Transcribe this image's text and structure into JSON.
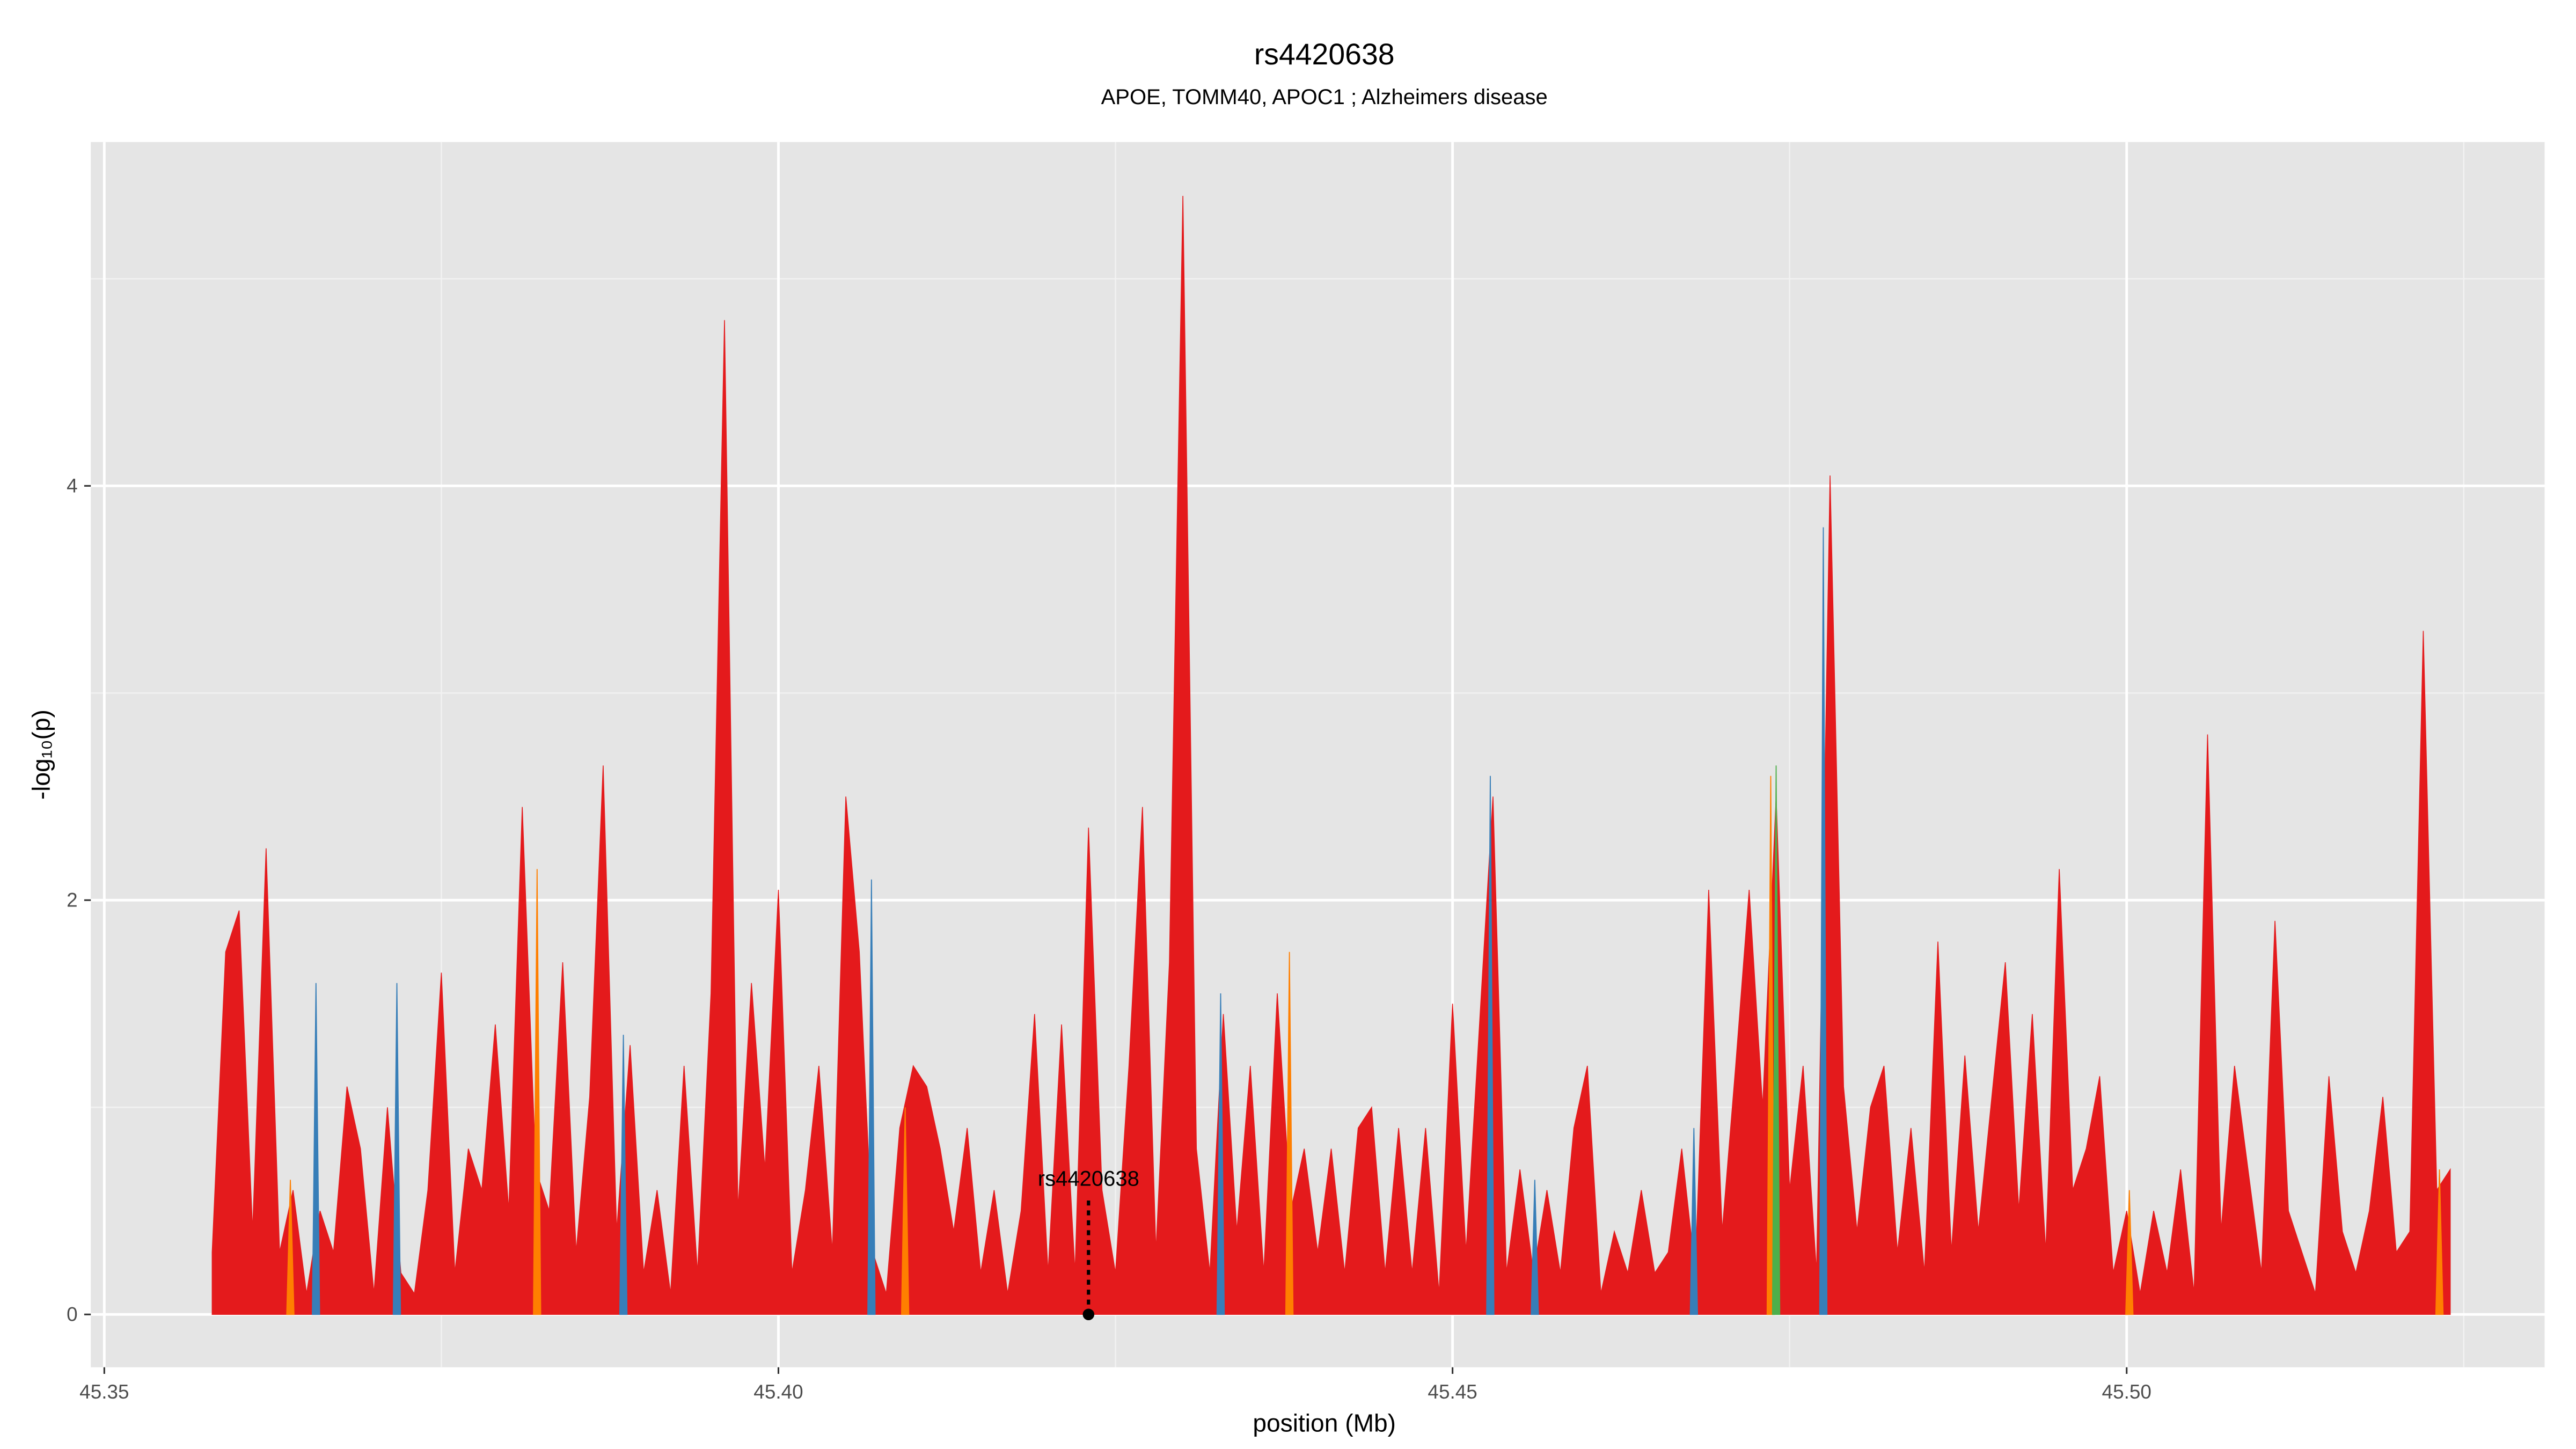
{
  "chart_data": {
    "type": "area",
    "title": "rs4420638",
    "subtitle": "APOE, TOMM40, APOC1 ; Alzheimers disease",
    "x_label": "position (Mb)",
    "y_label": "-log₁₀(p)",
    "xlim": [
      45.349,
      45.531
    ],
    "ylim": [
      -0.255,
      5.66
    ],
    "xticks": [
      45.35,
      {
        "value": 45.4,
        "label": "45.40"
      },
      45.45,
      {
        "value": 45.5,
        "label": "45.50"
      }
    ],
    "yticks": [
      0,
      2,
      4
    ],
    "grid": true,
    "series": [
      {
        "color": "#e41a1c",
        "x": [
          45.358,
          45.359,
          45.36,
          45.361,
          45.362,
          45.363,
          45.364,
          45.365,
          45.366,
          45.367,
          45.368,
          45.369,
          45.37,
          45.371,
          45.372,
          45.373,
          45.374,
          45.375,
          45.376,
          45.377,
          45.378,
          45.379,
          45.38,
          45.381,
          45.382,
          45.383,
          45.384,
          45.385,
          45.386,
          45.387,
          45.388,
          45.389,
          45.39,
          45.391,
          45.392,
          45.393,
          45.394,
          45.395,
          45.396,
          45.397,
          45.398,
          45.399,
          45.4,
          45.401,
          45.402,
          45.403,
          45.404,
          45.405,
          45.406,
          45.407,
          45.408,
          45.409,
          45.41,
          45.411,
          45.412,
          45.413,
          45.414,
          45.415,
          45.416,
          45.417,
          45.418,
          45.419,
          45.42,
          45.421,
          45.422,
          45.423,
          45.424,
          45.425,
          45.426,
          45.427,
          45.428,
          45.429,
          45.43,
          45.431,
          45.432,
          45.433,
          45.434,
          45.435,
          45.436,
          45.437,
          45.438,
          45.439,
          45.44,
          45.441,
          45.442,
          45.443,
          45.444,
          45.445,
          45.446,
          45.447,
          45.448,
          45.449,
          45.45,
          45.451,
          45.452,
          45.453,
          45.454,
          45.455,
          45.456,
          45.457,
          45.458,
          45.459,
          45.46,
          45.461,
          45.462,
          45.463,
          45.464,
          45.465,
          45.466,
          45.467,
          45.468,
          45.469,
          45.47,
          45.471,
          45.472,
          45.473,
          45.474,
          45.475,
          45.476,
          45.477,
          45.478,
          45.479,
          45.48,
          45.481,
          45.482,
          45.483,
          45.484,
          45.485,
          45.486,
          45.487,
          45.488,
          45.489,
          45.49,
          45.491,
          45.492,
          45.493,
          45.494,
          45.495,
          45.496,
          45.497,
          45.498,
          45.499,
          45.5,
          45.501,
          45.502,
          45.503,
          45.504,
          45.505,
          45.506,
          45.507,
          45.508,
          45.509,
          45.51,
          45.511,
          45.512,
          45.513,
          45.514,
          45.515,
          45.516,
          45.517,
          45.518,
          45.519,
          45.52,
          45.521,
          45.522,
          45.523,
          45.524
        ],
        "values": [
          0.3,
          1.75,
          1.95,
          0.4,
          2.25,
          0.3,
          0.6,
          0.1,
          0.5,
          0.3,
          1.1,
          0.8,
          0.1,
          1.0,
          0.2,
          0.1,
          0.6,
          1.65,
          0.2,
          0.8,
          0.6,
          1.4,
          0.5,
          2.45,
          0.7,
          0.5,
          1.7,
          0.3,
          1.05,
          2.65,
          0.4,
          1.3,
          0.2,
          0.6,
          0.1,
          1.2,
          0.2,
          1.55,
          4.8,
          0.5,
          1.6,
          0.7,
          2.05,
          0.2,
          0.6,
          1.2,
          0.3,
          2.5,
          1.75,
          0.3,
          0.1,
          0.9,
          1.2,
          1.1,
          0.8,
          0.4,
          0.9,
          0.2,
          0.6,
          0.1,
          0.5,
          1.45,
          0.2,
          1.4,
          0.2,
          2.35,
          0.6,
          0.2,
          1.2,
          2.45,
          0.3,
          1.7,
          5.4,
          0.8,
          0.2,
          1.45,
          0.4,
          1.2,
          0.2,
          1.55,
          0.5,
          0.8,
          0.3,
          0.8,
          0.2,
          0.9,
          1.0,
          0.2,
          0.9,
          0.2,
          0.9,
          0.1,
          1.5,
          0.3,
          1.4,
          2.5,
          0.2,
          0.7,
          0.2,
          0.6,
          0.2,
          0.9,
          1.2,
          0.1,
          0.4,
          0.2,
          0.6,
          0.2,
          0.3,
          0.8,
          0.2,
          2.05,
          0.4,
          1.2,
          2.05,
          1.0,
          2.5,
          0.6,
          1.2,
          0.2,
          4.05,
          1.1,
          0.4,
          1.0,
          1.2,
          0.3,
          0.9,
          0.2,
          1.8,
          0.3,
          1.25,
          0.4,
          1.05,
          1.7,
          0.5,
          1.45,
          0.3,
          2.15,
          0.6,
          0.8,
          1.15,
          0.2,
          0.5,
          0.1,
          0.5,
          0.2,
          0.7,
          0.1,
          2.8,
          0.4,
          1.2,
          0.7,
          0.2,
          1.9,
          0.5,
          0.3,
          0.1,
          1.15,
          0.4,
          0.2,
          0.5,
          1.05,
          0.3,
          0.4,
          3.3,
          0.6,
          0.7
        ]
      },
      {
        "color": "#377eb8",
        "x": [
          45.3657,
          45.3717,
          45.3885,
          45.4069,
          45.4328,
          45.4528,
          45.4561,
          45.4679,
          45.4775
        ],
        "values": [
          1.6,
          1.6,
          1.35,
          2.1,
          1.55,
          2.6,
          0.65,
          0.9,
          3.8
        ]
      },
      {
        "color": "#ff7f00",
        "x": [
          45.3638,
          45.3821,
          45.4094,
          45.4379,
          45.4736,
          45.5002,
          45.5232
        ],
        "values": [
          0.65,
          2.15,
          1.0,
          1.75,
          2.6,
          0.6,
          0.7
        ]
      },
      {
        "color": "#4daf4a",
        "x": [
          45.474
        ],
        "values": [
          2.65
        ]
      }
    ],
    "annotations": [
      {
        "label": "rs4420638",
        "x": 45.423,
        "y": 0
      }
    ]
  }
}
